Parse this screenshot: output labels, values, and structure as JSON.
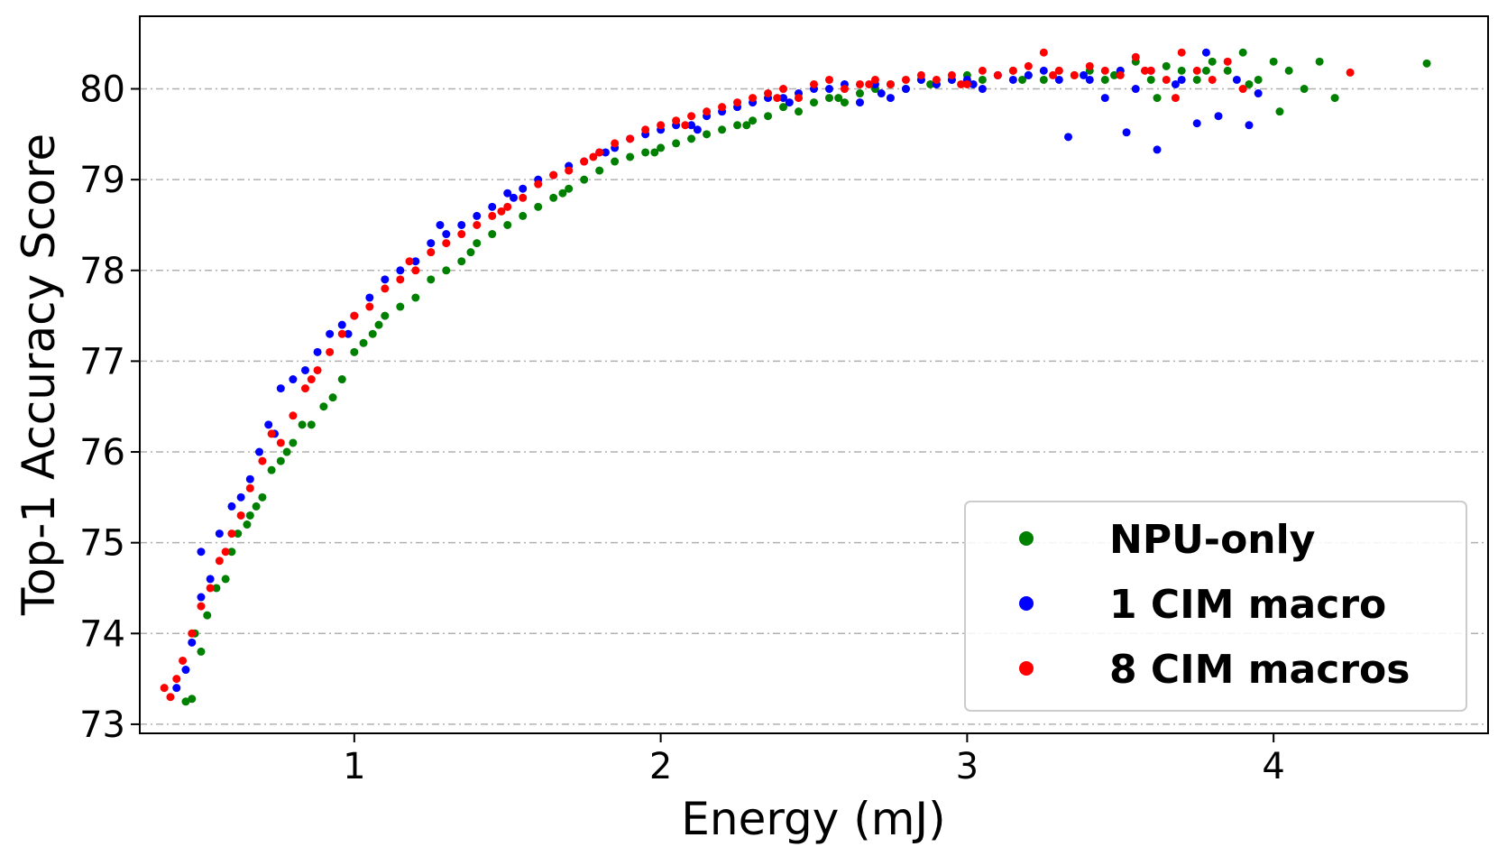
{
  "chart_data": {
    "type": "scatter",
    "title": "",
    "xlabel": "Energy (mJ)",
    "ylabel": "Top-1 Accuracy Score",
    "xlim": [
      0.3,
      4.7
    ],
    "ylim": [
      72.9,
      80.8
    ],
    "xticks": [
      1,
      2,
      3,
      4
    ],
    "yticks": [
      73,
      74,
      75,
      76,
      77,
      78,
      79,
      80
    ],
    "grid": "horizontal dashed",
    "legend_position": "lower-right",
    "series": [
      {
        "name": "NPU-only",
        "color": "#008000",
        "points": [
          [
            0.45,
            73.25
          ],
          [
            0.47,
            73.28
          ],
          [
            0.5,
            73.8
          ],
          [
            0.48,
            74.0
          ],
          [
            0.52,
            74.2
          ],
          [
            0.55,
            74.5
          ],
          [
            0.58,
            74.6
          ],
          [
            0.6,
            74.9
          ],
          [
            0.62,
            75.1
          ],
          [
            0.65,
            75.2
          ],
          [
            0.68,
            75.4
          ],
          [
            0.7,
            75.5
          ],
          [
            0.73,
            75.8
          ],
          [
            0.76,
            75.9
          ],
          [
            0.8,
            76.1
          ],
          [
            0.83,
            76.3
          ],
          [
            0.86,
            76.3
          ],
          [
            0.9,
            76.5
          ],
          [
            0.93,
            76.6
          ],
          [
            0.96,
            76.8
          ],
          [
            1.0,
            77.1
          ],
          [
            1.03,
            77.2
          ],
          [
            1.06,
            77.3
          ],
          [
            1.1,
            77.5
          ],
          [
            1.15,
            77.6
          ],
          [
            1.2,
            77.7
          ],
          [
            1.25,
            77.9
          ],
          [
            1.3,
            78.0
          ],
          [
            1.35,
            78.1
          ],
          [
            1.4,
            78.3
          ],
          [
            1.45,
            78.4
          ],
          [
            1.5,
            78.5
          ],
          [
            1.55,
            78.6
          ],
          [
            1.6,
            78.7
          ],
          [
            1.65,
            78.8
          ],
          [
            1.7,
            78.9
          ],
          [
            1.75,
            79.0
          ],
          [
            1.8,
            79.1
          ],
          [
            1.85,
            79.2
          ],
          [
            1.9,
            79.25
          ],
          [
            1.95,
            79.3
          ],
          [
            2.0,
            79.35
          ],
          [
            2.05,
            79.4
          ],
          [
            2.1,
            79.45
          ],
          [
            2.15,
            79.5
          ],
          [
            2.2,
            79.55
          ],
          [
            2.25,
            79.6
          ],
          [
            2.3,
            79.65
          ],
          [
            2.35,
            79.7
          ],
          [
            2.4,
            79.8
          ],
          [
            2.45,
            79.75
          ],
          [
            2.5,
            79.85
          ],
          [
            2.55,
            79.9
          ],
          [
            2.6,
            79.85
          ],
          [
            2.65,
            79.95
          ],
          [
            2.7,
            80.0
          ],
          [
            2.75,
            80.05
          ],
          [
            2.8,
            80.0
          ],
          [
            2.85,
            80.1
          ],
          [
            2.9,
            80.05
          ],
          [
            2.95,
            80.1
          ],
          [
            3.0,
            80.15
          ],
          [
            3.05,
            80.1
          ],
          [
            3.1,
            80.15
          ],
          [
            3.15,
            80.2
          ],
          [
            3.2,
            80.15
          ],
          [
            3.25,
            80.1
          ],
          [
            3.3,
            80.2
          ],
          [
            3.35,
            80.15
          ],
          [
            3.4,
            80.2
          ],
          [
            3.45,
            80.1
          ],
          [
            3.5,
            80.2
          ],
          [
            3.55,
            80.3
          ],
          [
            3.6,
            80.1
          ],
          [
            3.65,
            80.25
          ],
          [
            3.7,
            80.2
          ],
          [
            3.75,
            80.1
          ],
          [
            3.8,
            80.3
          ],
          [
            3.85,
            80.2
          ],
          [
            3.9,
            80.4
          ],
          [
            3.95,
            80.1
          ],
          [
            4.0,
            80.3
          ],
          [
            4.05,
            80.2
          ],
          [
            4.1,
            80.0
          ],
          [
            4.15,
            80.3
          ],
          [
            4.2,
            79.9
          ],
          [
            4.5,
            80.28
          ],
          [
            1.08,
            77.4
          ],
          [
            1.38,
            78.2
          ],
          [
            1.68,
            78.85
          ],
          [
            1.98,
            79.3
          ],
          [
            2.28,
            79.6
          ],
          [
            2.58,
            79.9
          ],
          [
            2.88,
            80.05
          ],
          [
            3.18,
            80.1
          ],
          [
            3.48,
            80.15
          ],
          [
            3.78,
            80.2
          ],
          [
            3.92,
            80.05
          ],
          [
            4.02,
            79.75
          ],
          [
            3.62,
            79.9
          ],
          [
            0.78,
            76.0
          ],
          [
            0.66,
            75.3
          ]
        ]
      },
      {
        "name": "1 CIM macro",
        "color": "#0000ff",
        "points": [
          [
            0.42,
            73.4
          ],
          [
            0.45,
            73.6
          ],
          [
            0.47,
            73.9
          ],
          [
            0.5,
            74.4
          ],
          [
            0.5,
            74.9
          ],
          [
            0.53,
            74.6
          ],
          [
            0.56,
            75.1
          ],
          [
            0.6,
            75.4
          ],
          [
            0.63,
            75.5
          ],
          [
            0.66,
            75.7
          ],
          [
            0.69,
            76.0
          ],
          [
            0.72,
            76.3
          ],
          [
            0.76,
            76.7
          ],
          [
            0.8,
            76.8
          ],
          [
            0.84,
            76.9
          ],
          [
            0.88,
            77.1
          ],
          [
            0.92,
            77.3
          ],
          [
            0.96,
            77.4
          ],
          [
            1.0,
            77.5
          ],
          [
            1.05,
            77.7
          ],
          [
            1.1,
            77.9
          ],
          [
            1.15,
            78.0
          ],
          [
            1.2,
            78.1
          ],
          [
            1.25,
            78.3
          ],
          [
            1.3,
            78.4
          ],
          [
            1.35,
            78.5
          ],
          [
            1.4,
            78.6
          ],
          [
            1.45,
            78.7
          ],
          [
            1.5,
            78.85
          ],
          [
            1.55,
            78.9
          ],
          [
            1.6,
            79.0
          ],
          [
            1.65,
            79.05
          ],
          [
            1.7,
            79.15
          ],
          [
            1.75,
            79.2
          ],
          [
            1.8,
            79.3
          ],
          [
            1.85,
            79.35
          ],
          [
            1.9,
            79.45
          ],
          [
            1.95,
            79.5
          ],
          [
            2.0,
            79.55
          ],
          [
            2.05,
            79.6
          ],
          [
            2.1,
            79.6
          ],
          [
            2.15,
            79.7
          ],
          [
            2.2,
            79.75
          ],
          [
            2.25,
            79.8
          ],
          [
            2.3,
            79.85
          ],
          [
            2.35,
            79.9
          ],
          [
            2.4,
            79.9
          ],
          [
            2.45,
            79.95
          ],
          [
            2.5,
            80.0
          ],
          [
            2.55,
            80.0
          ],
          [
            2.6,
            80.05
          ],
          [
            2.65,
            79.85
          ],
          [
            2.7,
            80.05
          ],
          [
            2.75,
            79.9
          ],
          [
            2.8,
            80.0
          ],
          [
            2.85,
            80.1
          ],
          [
            2.9,
            80.05
          ],
          [
            2.95,
            80.1
          ],
          [
            3.0,
            80.1
          ],
          [
            3.05,
            80.0
          ],
          [
            3.1,
            80.15
          ],
          [
            3.15,
            80.1
          ],
          [
            3.2,
            80.15
          ],
          [
            3.25,
            80.2
          ],
          [
            3.3,
            80.1
          ],
          [
            3.33,
            79.47
          ],
          [
            3.4,
            80.1
          ],
          [
            3.45,
            79.9
          ],
          [
            3.5,
            80.2
          ],
          [
            3.52,
            79.52
          ],
          [
            3.55,
            80.0
          ],
          [
            3.6,
            80.2
          ],
          [
            3.62,
            79.33
          ],
          [
            3.7,
            80.1
          ],
          [
            3.75,
            79.62
          ],
          [
            3.78,
            80.4
          ],
          [
            3.82,
            79.7
          ],
          [
            3.88,
            80.1
          ],
          [
            3.92,
            79.6
          ],
          [
            3.95,
            79.95
          ],
          [
            1.28,
            78.5
          ],
          [
            1.52,
            78.8
          ],
          [
            1.82,
            79.3
          ],
          [
            2.12,
            79.55
          ],
          [
            2.42,
            79.85
          ],
          [
            2.72,
            79.95
          ],
          [
            3.02,
            80.05
          ],
          [
            3.38,
            80.15
          ],
          [
            3.68,
            80.05
          ],
          [
            0.74,
            76.2
          ],
          [
            0.98,
            77.3
          ]
        ]
      },
      {
        "name": "8 CIM macros",
        "color": "#ff0000",
        "points": [
          [
            0.38,
            73.4
          ],
          [
            0.4,
            73.3
          ],
          [
            0.44,
            73.7
          ],
          [
            0.47,
            74.0
          ],
          [
            0.5,
            74.3
          ],
          [
            0.53,
            74.5
          ],
          [
            0.56,
            74.8
          ],
          [
            0.6,
            75.1
          ],
          [
            0.63,
            75.3
          ],
          [
            0.66,
            75.6
          ],
          [
            0.7,
            75.9
          ],
          [
            0.73,
            76.2
          ],
          [
            0.76,
            76.1
          ],
          [
            0.8,
            76.4
          ],
          [
            0.84,
            76.7
          ],
          [
            0.88,
            76.9
          ],
          [
            0.92,
            77.1
          ],
          [
            0.96,
            77.3
          ],
          [
            1.0,
            77.5
          ],
          [
            1.05,
            77.6
          ],
          [
            1.1,
            77.8
          ],
          [
            1.15,
            77.9
          ],
          [
            1.2,
            78.0
          ],
          [
            1.25,
            78.2
          ],
          [
            1.3,
            78.3
          ],
          [
            1.35,
            78.4
          ],
          [
            1.4,
            78.5
          ],
          [
            1.45,
            78.6
          ],
          [
            1.5,
            78.7
          ],
          [
            1.55,
            78.8
          ],
          [
            1.6,
            78.95
          ],
          [
            1.65,
            79.05
          ],
          [
            1.7,
            79.1
          ],
          [
            1.75,
            79.2
          ],
          [
            1.8,
            79.3
          ],
          [
            1.85,
            79.4
          ],
          [
            1.9,
            79.45
          ],
          [
            1.95,
            79.55
          ],
          [
            2.0,
            79.6
          ],
          [
            2.05,
            79.65
          ],
          [
            2.1,
            79.7
          ],
          [
            2.15,
            79.75
          ],
          [
            2.2,
            79.8
          ],
          [
            2.25,
            79.85
          ],
          [
            2.3,
            79.9
          ],
          [
            2.35,
            79.95
          ],
          [
            2.4,
            80.0
          ],
          [
            2.45,
            79.9
          ],
          [
            2.5,
            80.05
          ],
          [
            2.55,
            80.1
          ],
          [
            2.6,
            80.0
          ],
          [
            2.65,
            80.05
          ],
          [
            2.7,
            80.1
          ],
          [
            2.75,
            80.05
          ],
          [
            2.8,
            80.1
          ],
          [
            2.85,
            80.15
          ],
          [
            2.9,
            80.1
          ],
          [
            2.95,
            80.15
          ],
          [
            3.0,
            80.05
          ],
          [
            3.05,
            80.2
          ],
          [
            3.1,
            80.15
          ],
          [
            3.15,
            80.2
          ],
          [
            3.2,
            80.25
          ],
          [
            3.25,
            80.4
          ],
          [
            3.3,
            80.2
          ],
          [
            3.35,
            80.15
          ],
          [
            3.4,
            80.25
          ],
          [
            3.45,
            80.2
          ],
          [
            3.5,
            80.15
          ],
          [
            3.55,
            80.35
          ],
          [
            3.6,
            80.2
          ],
          [
            3.65,
            80.1
          ],
          [
            3.7,
            80.4
          ],
          [
            3.75,
            80.2
          ],
          [
            3.8,
            80.1
          ],
          [
            3.85,
            80.3
          ],
          [
            3.9,
            80.0
          ],
          [
            4.25,
            80.18
          ],
          [
            0.58,
            74.9
          ],
          [
            0.86,
            76.8
          ],
          [
            1.18,
            78.1
          ],
          [
            1.48,
            78.65
          ],
          [
            1.78,
            79.25
          ],
          [
            2.08,
            79.6
          ],
          [
            2.38,
            79.9
          ],
          [
            2.68,
            80.05
          ],
          [
            2.98,
            80.05
          ],
          [
            3.28,
            80.15
          ],
          [
            3.58,
            80.2
          ],
          [
            3.68,
            79.9
          ],
          [
            0.42,
            73.5
          ]
        ]
      }
    ]
  }
}
